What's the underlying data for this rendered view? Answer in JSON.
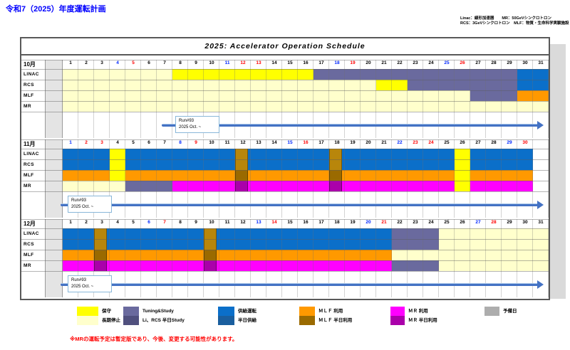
{
  "page": {
    "title": "令和7（2025）年度運転計画",
    "header_note_line1": "Linac：線形加速器　　MR：50GeVシンクロトロン",
    "header_note_line2": "RCS：3GeVシンクロトロン　MLF：物質・生命科学実験施設",
    "schedule_title": "2025:  Accelerator Operation Schedule",
    "footnote": "※MRの運転予定は暫定版であり、今後、変更する可能性があります。"
  },
  "colors": {
    "maintenance": "#FFFF00",
    "long_shutdown": "#FFFFCC",
    "tuning_study": "#6A6A9E",
    "study_half": "#50507E",
    "supply": "#0B6FC9",
    "supply_half": "#1A5E9E",
    "mlf_use": "#FF9900",
    "mlf_half": "#9A6A00",
    "half_gold": "#B8860B",
    "mr_use": "#FF00FF",
    "mr_half": "#AA00AA",
    "reserve": "#ADADAD",
    "saturday_number": "#0026FF",
    "holiday_number": "#FF0000",
    "title_text": "#0000FF",
    "footnote_text": "#FF0000",
    "arrow": "#4472C4"
  },
  "legend": {
    "columns": [
      {
        "items": [
          {
            "color": "maintenance",
            "label": "保守"
          },
          {
            "color": "long_shutdown",
            "label": "長期停止"
          }
        ]
      },
      {
        "items": [
          {
            "color": "tuning_study",
            "label": "Tuning&Study"
          },
          {
            "color": "study_half",
            "label": "Li、RCS 半日Study",
            "striped": true
          }
        ]
      },
      {
        "items": [
          {
            "color": "supply",
            "label": "供給運転"
          },
          {
            "color": "supply_half",
            "label": "半日供給",
            "striped": true
          }
        ]
      },
      {
        "items": [
          {
            "color": "mlf_use",
            "label": "ＭＬＦ 利用"
          },
          {
            "color": "mlf_half",
            "label": "ＭＬＦ 半日利用",
            "striped": true
          }
        ]
      },
      {
        "items": [
          {
            "color": "mr_use",
            "label": "ＭＲ 利用"
          },
          {
            "color": "mr_half",
            "label": "ＭＲ 半日利用",
            "striped": true
          }
        ]
      },
      {
        "items": [
          {
            "color": "reserve",
            "label": "予備日"
          }
        ]
      }
    ]
  },
  "chart_data": {
    "type": "gantt-calendar",
    "year": 2025,
    "half_day_row_colors": [
      "half_gold",
      "half_gold",
      "mlf_half",
      "mr_half"
    ],
    "months": [
      {
        "name": "10月",
        "days": 31,
        "saturdays": [
          4,
          11,
          18,
          25
        ],
        "holidays": [
          5,
          12,
          13,
          19,
          26
        ],
        "rows": [
          {
            "label": "LINAC",
            "segments": [
              [
                1,
                7,
                "long_shutdown"
              ],
              [
                8,
                16,
                "maintenance"
              ],
              [
                17,
                29,
                "tuning_study"
              ],
              [
                30,
                31,
                "supply"
              ]
            ]
          },
          {
            "label": "RCS",
            "segments": [
              [
                1,
                20,
                "long_shutdown"
              ],
              [
                21,
                22,
                "maintenance"
              ],
              [
                23,
                29,
                "tuning_study"
              ],
              [
                30,
                31,
                "supply"
              ]
            ]
          },
          {
            "label": "MLF",
            "segments": [
              [
                1,
                26,
                "long_shutdown"
              ],
              [
                27,
                29,
                "tuning_study"
              ],
              [
                30,
                31,
                "mlf_use"
              ]
            ]
          },
          {
            "label": "MR",
            "segments": [
              [
                1,
                31,
                "long_shutdown"
              ]
            ]
          }
        ],
        "half_days": [],
        "annotation": {
          "line1": "Run#93",
          "line2": "2025 Oct. ~",
          "arrow_from_day": 7.3,
          "box_from_day": 8.2
        }
      },
      {
        "name": "11月",
        "days": 30,
        "saturdays": [
          1,
          8,
          15,
          22,
          29
        ],
        "holidays": [
          2,
          3,
          9,
          16,
          23,
          24,
          30
        ],
        "rows": [
          {
            "label": "LINAC",
            "segments": [
              [
                1,
                3,
                "supply"
              ],
              [
                4,
                4,
                "maintenance"
              ],
              [
                5,
                25,
                "supply"
              ],
              [
                26,
                26,
                "maintenance"
              ],
              [
                27,
                30,
                "supply"
              ]
            ]
          },
          {
            "label": "RCS",
            "segments": [
              [
                1,
                3,
                "supply"
              ],
              [
                4,
                4,
                "maintenance"
              ],
              [
                5,
                25,
                "supply"
              ],
              [
                26,
                26,
                "maintenance"
              ],
              [
                27,
                30,
                "supply"
              ]
            ]
          },
          {
            "label": "MLF",
            "segments": [
              [
                1,
                3,
                "mlf_use"
              ],
              [
                4,
                4,
                "maintenance"
              ],
              [
                5,
                25,
                "mlf_use"
              ],
              [
                26,
                26,
                "maintenance"
              ],
              [
                27,
                30,
                "mlf_use"
              ]
            ]
          },
          {
            "label": "MR",
            "segments": [
              [
                1,
                4,
                "long_shutdown"
              ],
              [
                5,
                7,
                "tuning_study"
              ],
              [
                8,
                25,
                "mr_use"
              ],
              [
                26,
                26,
                "maintenance"
              ],
              [
                27,
                30,
                "mr_use"
              ]
            ]
          }
        ],
        "half_days": [
          12,
          18
        ],
        "annotation": {
          "line1": "Run#93",
          "line2": "2025 Oct. ~",
          "arrow_from_day": 0.86,
          "box_from_day": 1.32
        }
      },
      {
        "name": "12月",
        "days": 31,
        "saturdays": [
          6,
          13,
          20,
          27
        ],
        "holidays": [
          7,
          14,
          21,
          28
        ],
        "rows": [
          {
            "label": "LINAC",
            "segments": [
              [
                1,
                21,
                "supply"
              ],
              [
                22,
                24,
                "tuning_study"
              ],
              [
                25,
                31,
                "long_shutdown"
              ]
            ]
          },
          {
            "label": "RCS",
            "segments": [
              [
                1,
                21,
                "supply"
              ],
              [
                22,
                24,
                "tuning_study"
              ],
              [
                25,
                31,
                "long_shutdown"
              ]
            ]
          },
          {
            "label": "MLF",
            "segments": [
              [
                1,
                21,
                "mlf_use"
              ],
              [
                22,
                31,
                "long_shutdown"
              ]
            ]
          },
          {
            "label": "MR",
            "segments": [
              [
                1,
                21,
                "mr_use"
              ],
              [
                22,
                24,
                "tuning_study"
              ],
              [
                25,
                31,
                "long_shutdown"
              ]
            ]
          }
        ],
        "half_days": [
          3,
          10
        ],
        "annotation": {
          "line1": "Run#93",
          "line2": "2025 Oct. ~",
          "arrow_from_day": 0.86,
          "box_from_day": 1.32
        }
      }
    ]
  }
}
